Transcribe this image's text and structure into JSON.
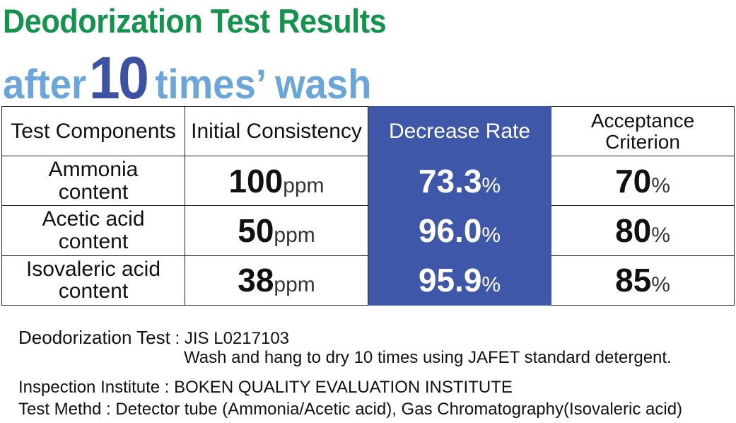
{
  "header": {
    "title": "Deodorization Test Results",
    "subtitle": {
      "before": "after",
      "number": "10",
      "after": "times’ wash"
    }
  },
  "table": {
    "columns": [
      "Test Components",
      "Initial Consistency",
      "Decrease Rate",
      "Acceptance Criterion"
    ],
    "rows": [
      [
        "Ammonia content",
        {
          "value": "100",
          "unit": "ppm"
        },
        {
          "value": "73.3",
          "unit": "%"
        },
        {
          "value": "70",
          "unit": "%"
        }
      ],
      [
        "Acetic acid content",
        {
          "value": "50",
          "unit": "ppm"
        },
        {
          "value": "96.0",
          "unit": "%"
        },
        {
          "value": "80",
          "unit": "%"
        }
      ],
      [
        "Isovaleric acid content",
        {
          "value": "38",
          "unit": "ppm"
        },
        {
          "value": "95.9",
          "unit": "%"
        },
        {
          "value": "85",
          "unit": "%"
        }
      ]
    ]
  },
  "notes": {
    "test_label": "Deodorization Test",
    "test_value": ": JIS L0217103",
    "procedure": "Wash and hang to dry 10 times using JAFET standard detergent.",
    "institute": "Inspection Institute : BOKEN QUALITY EVALUATION INSTITUTE",
    "method": "Test Methd : Detector tube (Ammonia/Acetic acid), Gas Chromatography(Isovaleric acid)"
  }
}
